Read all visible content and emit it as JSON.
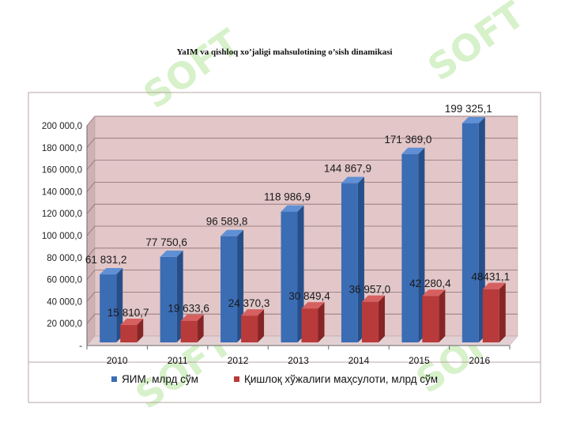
{
  "title": "YaIM va qishloq  xo’jaligi mahsulotining o’sish dinamikasi",
  "watermark_text": "SOFT",
  "colors": {
    "series1": "#3b6db4",
    "series1_side": "#264f8a",
    "series1_top": "#5f8fd4",
    "series2": "#b83a3a",
    "series2_side": "#862525",
    "series2_top": "#d66060",
    "plot_bg": "#e2c6c8",
    "plot_side": "#cfb1b4",
    "floor": "#e3d0d2",
    "outer_bg": "#ecdcdd"
  },
  "chart_data": {
    "type": "bar",
    "categories": [
      "2010",
      "2011",
      "2012",
      "2013",
      "2014",
      "2015",
      "2016"
    ],
    "series": [
      {
        "name": "ЯИМ, млрд сўм",
        "values": [
          61831.2,
          77750.6,
          96589.8,
          118986.9,
          144867.9,
          171369.0,
          199325.1
        ],
        "labels": [
          "61 831,2",
          "77 750,6",
          "96 589,8",
          "118 986,9",
          "144 867,9",
          "171 369,0",
          "199 325,1"
        ]
      },
      {
        "name": "Қишлоқ хўжалиги маҳсулоти, млрд сўм",
        "values": [
          15810.7,
          19633.6,
          24370.3,
          30849.4,
          36957.0,
          42280.4,
          48431.1
        ],
        "labels": [
          "15 810,7",
          "19 633,6",
          "24 370,3",
          "30 849,4",
          "36 957,0",
          "42 280,4",
          "48431,1"
        ]
      }
    ],
    "ylim": [
      0,
      200000
    ],
    "yticks": [
      0,
      20000,
      40000,
      60000,
      80000,
      100000,
      120000,
      140000,
      160000,
      180000,
      200000
    ],
    "ytick_labels": [
      "-",
      "20 000,0",
      "40 000,0",
      "60 000,0",
      "80 000,0",
      "100 000,0",
      "120 000,0",
      "140 000,0",
      "160 000,0",
      "180 000,0",
      "200 000,0"
    ],
    "grid": true,
    "legend_position": "bottom",
    "style": "3d-clustered-column"
  }
}
